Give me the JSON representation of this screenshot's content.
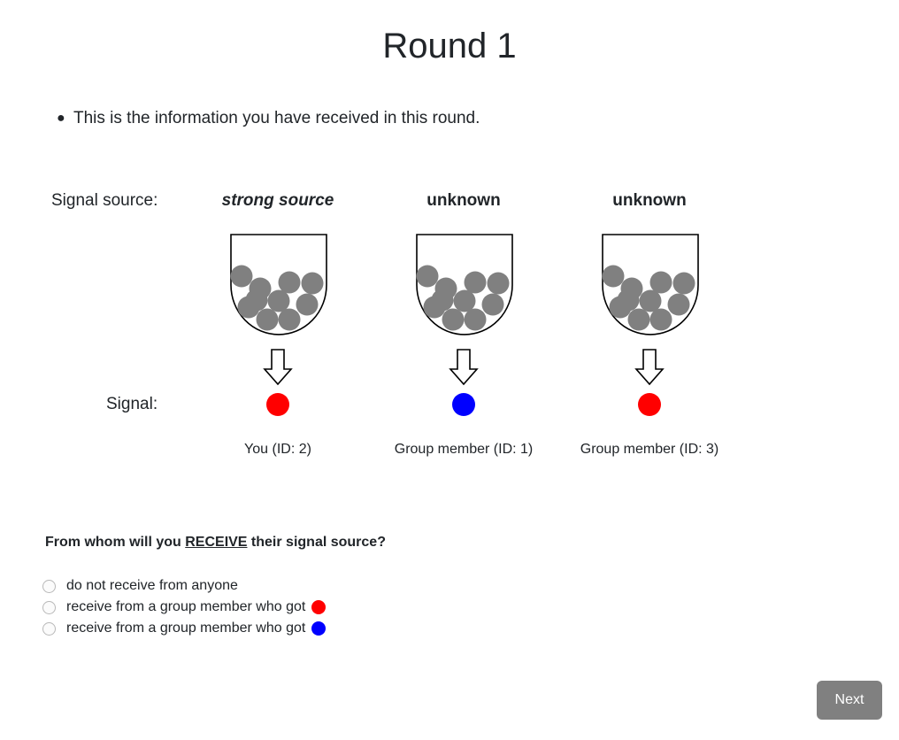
{
  "page": {
    "title": "Round 1",
    "intro_text": "This is the information you have received in this round.",
    "signal_source_label": "Signal source:",
    "signal_label": "Signal:"
  },
  "columns": [
    {
      "source": "strong source",
      "signal_color": "#ff0000",
      "participant": "You (ID: 2)"
    },
    {
      "source": "unknown",
      "signal_color": "#0000ff",
      "participant": "Group member (ID: 1)"
    },
    {
      "source": "unknown",
      "signal_color": "#ff0000",
      "participant": "Group member (ID: 3)"
    }
  ],
  "urn": {
    "ball_color": "#808080",
    "ball_count": 10
  },
  "question": {
    "prefix": "From whom will you ",
    "emphasis": "RECEIVE",
    "suffix": " their signal source?"
  },
  "options": [
    {
      "label": "do not receive from anyone",
      "dot_color": null,
      "checked": false
    },
    {
      "label": "receive from a group member who got",
      "dot_color": "#ff0000",
      "checked": false
    },
    {
      "label": "receive from a group member who got",
      "dot_color": "#0000ff",
      "checked": false
    }
  ],
  "next_button": {
    "label": "Next",
    "color": "#808080"
  }
}
